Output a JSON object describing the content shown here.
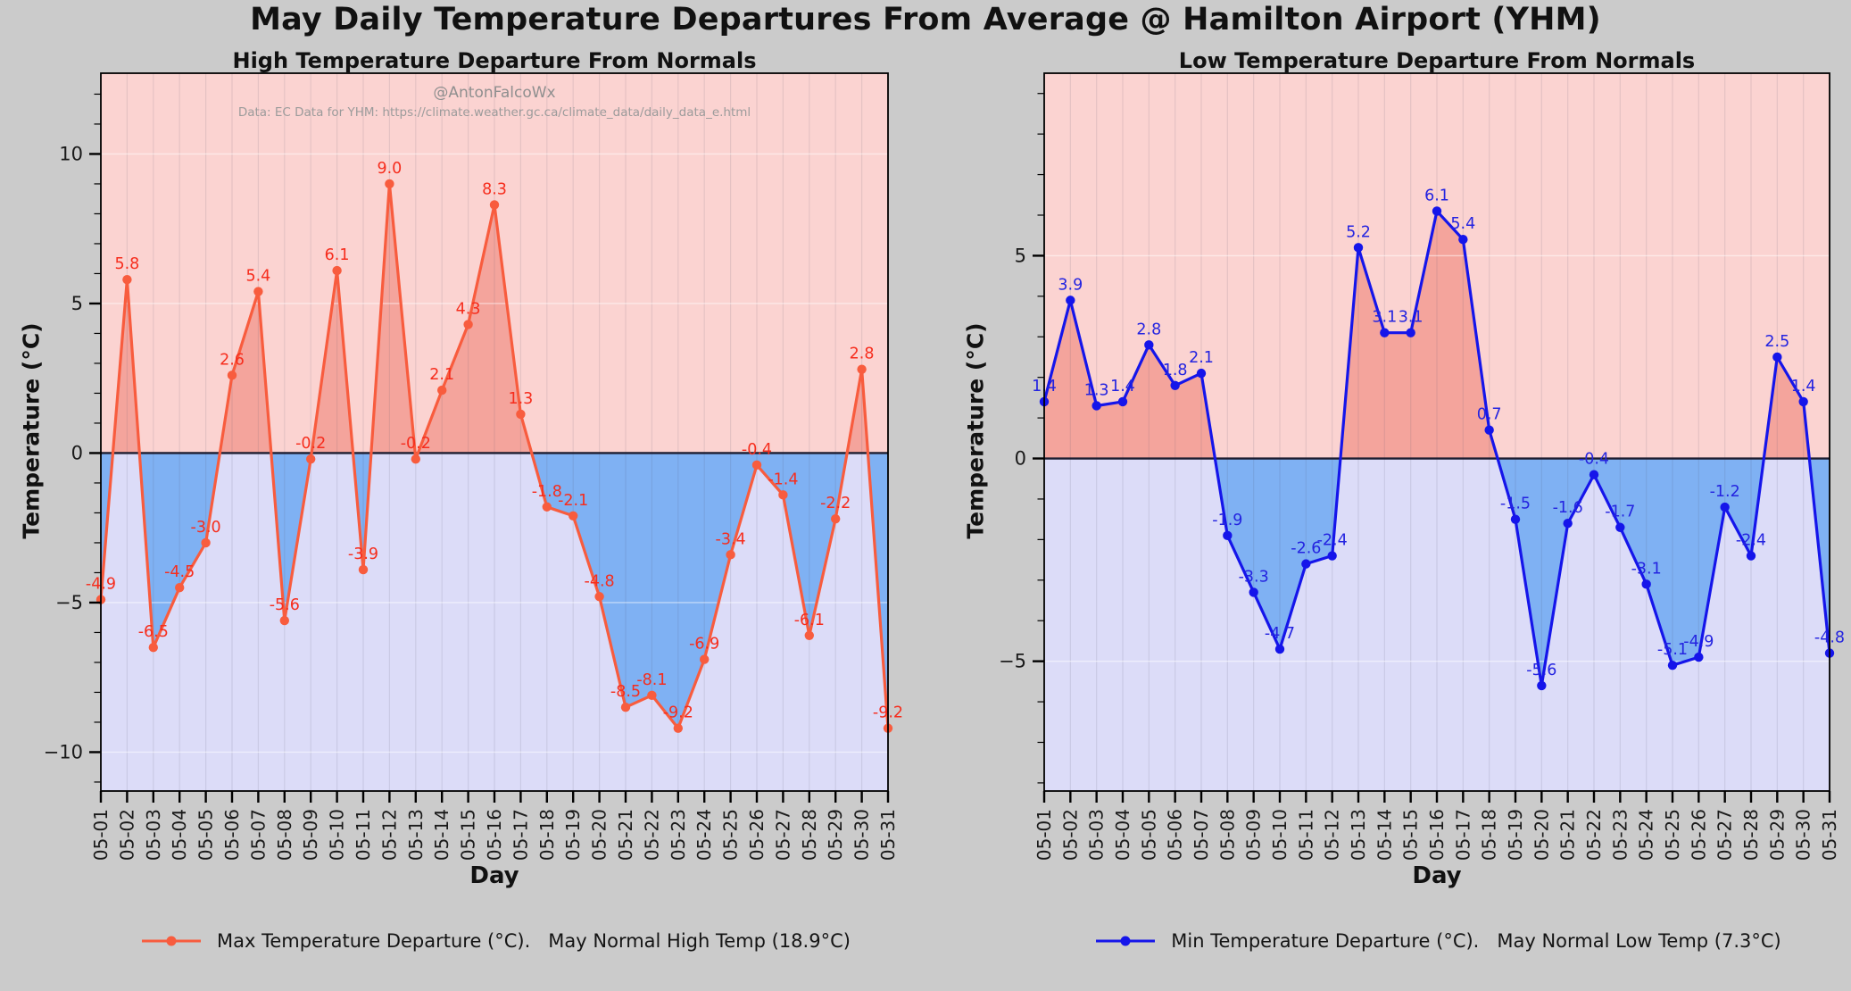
{
  "figure": {
    "title": "May Daily Temperature Departures From Average @ Hamilton Airport (YHM)",
    "watermark_line1": "@AntonFalcoWx",
    "watermark_line2": "Data: EC Data for YHM: https://climate.weather.gc.ca/climate_data/daily_data_e.html",
    "background": "#cbcbcb"
  },
  "chart_data": [
    {
      "type": "line",
      "title": "High Temperature Departure From Normals",
      "xlabel": "Day",
      "ylabel": "Temperature (°C)",
      "legend": "Max Temperature Departure (°C).   May Normal High Temp (18.9°C)",
      "categories": [
        "05-01",
        "05-02",
        "05-03",
        "05-04",
        "05-05",
        "05-06",
        "05-07",
        "05-08",
        "05-09",
        "05-10",
        "05-11",
        "05-12",
        "05-13",
        "05-14",
        "05-15",
        "05-16",
        "05-17",
        "05-18",
        "05-19",
        "05-20",
        "05-21",
        "05-22",
        "05-23",
        "05-24",
        "05-25",
        "05-26",
        "05-27",
        "05-28",
        "05-29",
        "05-30",
        "05-31"
      ],
      "series": [
        {
          "name": "Max Temperature Departure (°C)",
          "values": [
            -4.9,
            5.8,
            -6.5,
            -4.5,
            -3.0,
            2.6,
            5.4,
            -5.6,
            -0.2,
            6.1,
            -3.9,
            9.0,
            -0.2,
            2.1,
            4.3,
            8.3,
            1.3,
            -1.8,
            -2.1,
            -4.8,
            -8.5,
            -8.1,
            -9.2,
            -6.9,
            -3.4,
            -0.4,
            -1.4,
            -6.1,
            -2.2,
            2.8,
            -9.2
          ]
        }
      ],
      "ylim": [
        -11.3,
        12.7
      ],
      "yticks": [
        10,
        5,
        0,
        -5,
        -10
      ],
      "minor_tick_step": 1,
      "grid": true,
      "value_label_format": "fixed1",
      "legend_position": "bottom-center",
      "colors": {
        "line": "#f85c3e",
        "fill_positive": "#f4a49c",
        "fill_negative": "#7fb1f3",
        "value_label": "#f62d1d",
        "bg_above_zero": "#fbd3d1",
        "bg_below_zero": "#dcdcf8"
      }
    },
    {
      "type": "line",
      "title": "Low Temperature Departure From Normals",
      "xlabel": "Day",
      "ylabel": "Temperature (°C)",
      "legend": "Min Temperature Departure (°C).   May Normal Low Temp (7.3°C)",
      "categories": [
        "05-01",
        "05-02",
        "05-03",
        "05-04",
        "05-05",
        "05-06",
        "05-07",
        "05-08",
        "05-09",
        "05-10",
        "05-11",
        "05-12",
        "05-13",
        "05-14",
        "05-15",
        "05-16",
        "05-17",
        "05-18",
        "05-19",
        "05-20",
        "05-21",
        "05-22",
        "05-23",
        "05-24",
        "05-25",
        "05-26",
        "05-27",
        "05-28",
        "05-29",
        "05-30",
        "05-31"
      ],
      "series": [
        {
          "name": "Min Temperature Departure (°C)",
          "values": [
            1.4,
            3.9,
            1.3,
            1.4,
            2.8,
            1.8,
            2.1,
            -1.9,
            -3.3,
            -4.7,
            -2.6,
            -2.4,
            5.2,
            3.1,
            3.1,
            6.1,
            5.4,
            0.7,
            -1.5,
            -5.6,
            -1.6,
            -0.4,
            -1.7,
            -3.1,
            -5.1,
            -4.9,
            -1.2,
            -2.4,
            2.5,
            1.4,
            -4.8
          ]
        }
      ],
      "ylim": [
        -8.2,
        9.5
      ],
      "yticks": [
        5,
        0,
        -5
      ],
      "minor_tick_step": 1,
      "grid": true,
      "value_label_format": "fixed1",
      "legend_position": "bottom-center",
      "colors": {
        "line": "#1515ea",
        "fill_positive": "#f4a49c",
        "fill_negative": "#7fb1f3",
        "value_label": "#2424e0",
        "bg_above_zero": "#fbd3d1",
        "bg_below_zero": "#dcdcf8"
      }
    }
  ],
  "style": {
    "zero_line": "#1d1d30",
    "axis": "#000000",
    "tick_label": "#1a1a1a"
  }
}
